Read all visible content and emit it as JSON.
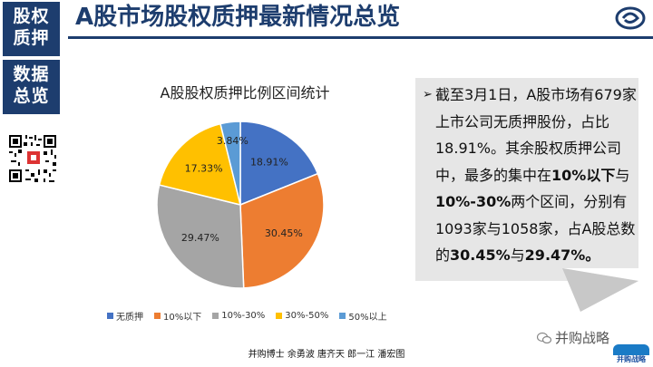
{
  "sidebar": {
    "tag1": [
      "股权",
      "质押"
    ],
    "tag2": [
      "数据",
      "总览"
    ]
  },
  "header": {
    "title": "A股市场股权质押最新情况总览"
  },
  "chart_data": {
    "type": "pie",
    "title": "A股股权质押比例区间统计",
    "categories": [
      "无质押",
      "10%以下",
      "10%-30%",
      "30%-50%",
      "50%以上"
    ],
    "values": [
      18.91,
      30.45,
      29.47,
      17.33,
      3.84
    ],
    "labels": [
      "18.91%",
      "30.45%",
      "29.47%",
      "17.33%",
      "3.84%"
    ],
    "colors": [
      "#4472c4",
      "#ed7d31",
      "#a5a5a5",
      "#ffc000",
      "#5b9bd5"
    ],
    "legend_position": "bottom"
  },
  "callout": {
    "bullet": "➢",
    "line1": "截至3月1日，A股市场有679家上市公司无质押股份，占比18.91%。其余股权质押公司中，最多的集中在",
    "bold1": "10%以下",
    "mid1": "与",
    "bold2": "10%-30%",
    "mid2": "两个区间，分别有1093家与1058家，占A股总数的",
    "bold3": "30.45%",
    "mid3": "与",
    "bold4": "29.47%",
    "end": "。"
  },
  "watermark": {
    "text": "并购战略",
    "logo_text": "并购战略"
  },
  "footer": {
    "text": "并购博士 余勇波 唐齐天 郎一江 潘宏图"
  },
  "colors": {
    "brand": "#1d3d6e"
  }
}
